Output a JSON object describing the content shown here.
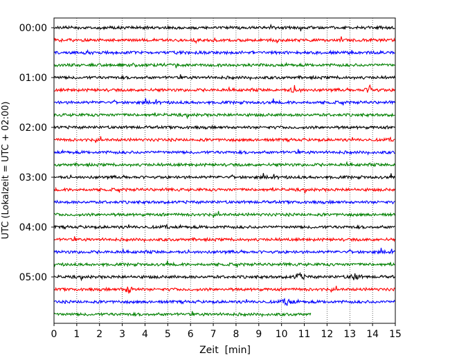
{
  "chart_data": {
    "type": "line",
    "title": "",
    "xlabel": "Zeit  [min]",
    "ylabel": "UTC (Lokalzeit = UTC + 02:00)",
    "x_ticks": [
      "0",
      "1",
      "2",
      "3",
      "4",
      "5",
      "6",
      "7",
      "8",
      "9",
      "10",
      "11",
      "12",
      "13",
      "14",
      "15"
    ],
    "xlim": [
      0,
      15
    ],
    "y_tick_labels": [
      "00:00",
      "01:00",
      "02:00",
      "03:00",
      "04:00",
      "05:00"
    ],
    "row_interval_minutes": 15,
    "grid": "vertical dotted lines at each minute",
    "series_colors": [
      "#000000",
      "#ff0000",
      "#0000ff",
      "#008000"
    ],
    "rows": [
      {
        "start": "00:00",
        "color": "#000000",
        "end_min": 15
      },
      {
        "start": "00:15",
        "color": "#ff0000",
        "end_min": 15
      },
      {
        "start": "00:30",
        "color": "#0000ff",
        "end_min": 15
      },
      {
        "start": "00:45",
        "color": "#008000",
        "end_min": 15
      },
      {
        "start": "01:00",
        "color": "#000000",
        "end_min": 15
      },
      {
        "start": "01:15",
        "color": "#ff0000",
        "end_min": 15
      },
      {
        "start": "01:30",
        "color": "#0000ff",
        "end_min": 15
      },
      {
        "start": "01:45",
        "color": "#008000",
        "end_min": 15
      },
      {
        "start": "02:00",
        "color": "#000000",
        "end_min": 15
      },
      {
        "start": "02:15",
        "color": "#ff0000",
        "end_min": 15
      },
      {
        "start": "02:30",
        "color": "#0000ff",
        "end_min": 15
      },
      {
        "start": "02:45",
        "color": "#008000",
        "end_min": 15
      },
      {
        "start": "03:00",
        "color": "#000000",
        "end_min": 15
      },
      {
        "start": "03:15",
        "color": "#ff0000",
        "end_min": 15
      },
      {
        "start": "03:30",
        "color": "#0000ff",
        "end_min": 15
      },
      {
        "start": "03:45",
        "color": "#008000",
        "end_min": 15
      },
      {
        "start": "04:00",
        "color": "#000000",
        "end_min": 15
      },
      {
        "start": "04:15",
        "color": "#ff0000",
        "end_min": 15
      },
      {
        "start": "04:30",
        "color": "#0000ff",
        "end_min": 15
      },
      {
        "start": "04:45",
        "color": "#008000",
        "end_min": 15
      },
      {
        "start": "05:00",
        "color": "#000000",
        "end_min": 15
      },
      {
        "start": "05:15",
        "color": "#ff0000",
        "end_min": 15
      },
      {
        "start": "05:30",
        "color": "#0000ff",
        "end_min": 15
      },
      {
        "start": "05:45",
        "color": "#008000",
        "end_min": 11.3
      }
    ],
    "notable_events": [
      {
        "row": "01:15",
        "minute": 10.6
      },
      {
        "row": "01:15",
        "minute": 13.9
      },
      {
        "row": "05:00",
        "minute": 10.8
      },
      {
        "row": "05:00",
        "minute": 13.2
      },
      {
        "row": "05:15",
        "minute": 3.3
      },
      {
        "row": "05:30",
        "minute": 10.3
      }
    ]
  }
}
